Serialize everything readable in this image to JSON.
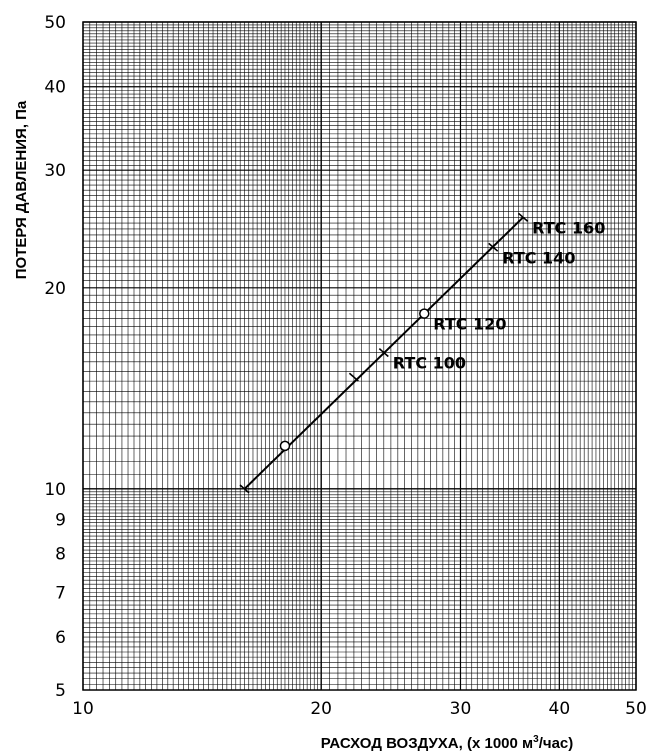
{
  "chart_data": {
    "type": "line",
    "title": "",
    "xlabel": "РАСХОД ВОЗДУХА,  (х 1000 м",
    "xlabel_sup": "3",
    "xlabel_tail": "/час)",
    "ylabel": "ПОТЕРЯ ДАВЛЕНИЯ, Па",
    "x_scale": "log",
    "y_scale": "log",
    "xlim": [
      10,
      50
    ],
    "ylim": [
      5,
      50
    ],
    "x_ticks": [
      10,
      20,
      30,
      40,
      50
    ],
    "x_tick_labels": [
      "10",
      "20",
      "30",
      "40",
      "50"
    ],
    "y_ticks": [
      5,
      6,
      7,
      8,
      9,
      10,
      20,
      30,
      40,
      50
    ],
    "y_tick_labels": [
      "5",
      "6",
      "7",
      "8",
      "9",
      "10",
      "20",
      "30",
      "40",
      "50"
    ],
    "grid": true,
    "series": [
      {
        "x": [
          16,
          36
        ],
        "y": [
          10,
          25.5
        ],
        "color": "#000000"
      }
    ],
    "markers": [
      {
        "x": 16,
        "y": 10,
        "kind": "cross"
      },
      {
        "x": 18,
        "y": 11.6,
        "kind": "circle"
      },
      {
        "x": 22,
        "y": 14.7,
        "kind": "cross"
      },
      {
        "x": 24,
        "y": 16,
        "kind": "cross"
      },
      {
        "x": 27,
        "y": 18.3,
        "kind": "circle"
      },
      {
        "x": 33,
        "y": 23,
        "kind": "cross"
      },
      {
        "x": 36,
        "y": 25.5,
        "kind": "cross"
      }
    ],
    "annotations": [
      {
        "text": "RTC 100",
        "x": 24,
        "y": 16
      },
      {
        "text": "RTC 120",
        "x": 27,
        "y": 18.3
      },
      {
        "text": "RTC 140",
        "x": 33,
        "y": 23
      },
      {
        "text": "RTC 160",
        "x": 36,
        "y": 25.5
      }
    ]
  }
}
